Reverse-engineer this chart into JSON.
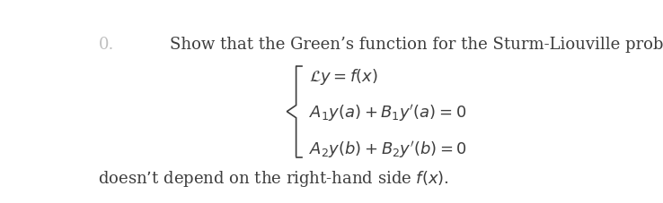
{
  "background_color": "#ffffff",
  "text_color": "#3d3d3d",
  "title_text": "Show that the Green’s function for the Sturm-Liouville problem",
  "line1": "$\\mathcal{L}y = f(x)$",
  "line2": "$A_1y(a) + B_1y'(a) = 0$",
  "line3": "$A_2y(b) + B_2y'(b) = 0$",
  "footer_text": "doesn’t depend on the right-hand side $f(x)$.",
  "number_text": "0.",
  "title_fontsize": 13,
  "math_fontsize": 13,
  "footer_fontsize": 13
}
